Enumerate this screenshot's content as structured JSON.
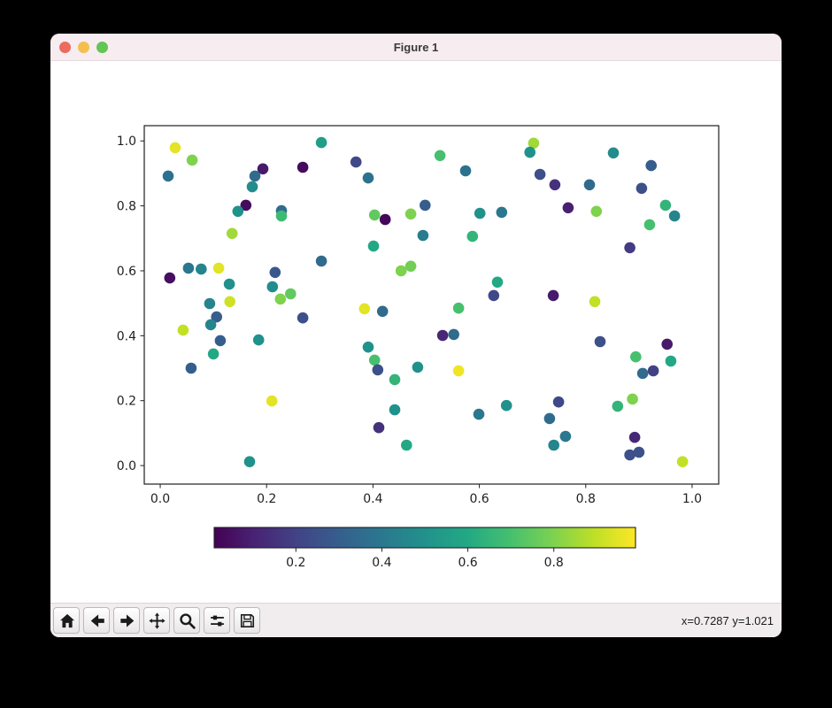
{
  "window": {
    "title": "Figure 1"
  },
  "titlebar": {
    "traffic_lights": [
      {
        "name": "close-button",
        "color": "#ec6a5e"
      },
      {
        "name": "minimize-button",
        "color": "#f5bf4f"
      },
      {
        "name": "maximize-button",
        "color": "#62c554"
      }
    ]
  },
  "toolbar": {
    "buttons": [
      {
        "name": "home",
        "icon": "home-icon"
      },
      {
        "name": "back",
        "icon": "back-arrow-icon"
      },
      {
        "name": "forward",
        "icon": "forward-arrow-icon"
      },
      {
        "name": "pan",
        "icon": "pan-arrows-icon"
      },
      {
        "name": "zoom",
        "icon": "magnifier-icon"
      },
      {
        "name": "configure-subplots",
        "icon": "sliders-icon"
      },
      {
        "name": "save",
        "icon": "floppy-disk-icon"
      }
    ],
    "status": "x=0.7287 y=1.021"
  },
  "chart_data": {
    "type": "scatter",
    "title": "",
    "xlabel": "",
    "ylabel": "",
    "xlim": [
      -0.03,
      1.05
    ],
    "ylim": [
      -0.057,
      1.047
    ],
    "xticks": {
      "values": [
        0.0,
        0.2,
        0.4,
        0.6,
        0.8,
        1.0
      ],
      "labels": [
        "0.0",
        "0.2",
        "0.4",
        "0.6",
        "0.8",
        "1.0"
      ]
    },
    "yticks": {
      "values": [
        0.0,
        0.2,
        0.4,
        0.6,
        0.8,
        1.0
      ],
      "labels": [
        "0.0",
        "0.2",
        "0.4",
        "0.6",
        "0.8",
        "1.0"
      ]
    },
    "colormap": "viridis",
    "colorbar": {
      "orientation": "horizontal",
      "vmin": 0.01,
      "vmax": 0.99,
      "tick_values": [
        0.2,
        0.4,
        0.6,
        0.8
      ],
      "tick_labels": [
        "0.2",
        "0.4",
        "0.6",
        "0.8"
      ]
    },
    "marker_radius": 6.3,
    "points": [
      [
        0.028,
        0.979,
        0.95
      ],
      [
        0.06,
        0.941,
        0.8
      ],
      [
        0.303,
        0.995,
        0.55
      ],
      [
        0.015,
        0.892,
        0.38
      ],
      [
        0.193,
        0.914,
        0.08
      ],
      [
        0.268,
        0.919,
        0.04
      ],
      [
        0.178,
        0.892,
        0.35
      ],
      [
        0.173,
        0.859,
        0.48
      ],
      [
        0.161,
        0.802,
        0.04
      ],
      [
        0.146,
        0.783,
        0.5
      ],
      [
        0.228,
        0.785,
        0.36
      ],
      [
        0.228,
        0.769,
        0.68
      ],
      [
        0.135,
        0.715,
        0.85
      ],
      [
        0.053,
        0.608,
        0.4
      ],
      [
        0.077,
        0.605,
        0.45
      ],
      [
        0.11,
        0.608,
        0.95
      ],
      [
        0.018,
        0.578,
        0.05
      ],
      [
        0.216,
        0.595,
        0.28
      ],
      [
        0.13,
        0.559,
        0.5
      ],
      [
        0.211,
        0.551,
        0.48
      ],
      [
        0.245,
        0.529,
        0.75
      ],
      [
        0.093,
        0.499,
        0.45
      ],
      [
        0.131,
        0.505,
        0.92
      ],
      [
        0.226,
        0.513,
        0.8
      ],
      [
        0.303,
        0.63,
        0.35
      ],
      [
        0.368,
        0.935,
        0.22
      ],
      [
        0.391,
        0.886,
        0.38
      ],
      [
        0.526,
        0.955,
        0.7
      ],
      [
        0.574,
        0.908,
        0.38
      ],
      [
        0.498,
        0.802,
        0.3
      ],
      [
        0.403,
        0.772,
        0.75
      ],
      [
        0.423,
        0.758,
        0.03
      ],
      [
        0.471,
        0.775,
        0.8
      ],
      [
        0.601,
        0.777,
        0.5
      ],
      [
        0.642,
        0.78,
        0.4
      ],
      [
        0.494,
        0.709,
        0.42
      ],
      [
        0.587,
        0.706,
        0.65
      ],
      [
        0.401,
        0.676,
        0.6
      ],
      [
        0.453,
        0.6,
        0.8
      ],
      [
        0.471,
        0.614,
        0.78
      ],
      [
        0.634,
        0.565,
        0.6
      ],
      [
        0.627,
        0.524,
        0.22
      ],
      [
        0.384,
        0.483,
        0.95
      ],
      [
        0.561,
        0.485,
        0.7
      ],
      [
        0.702,
        0.993,
        0.85
      ],
      [
        0.695,
        0.965,
        0.5
      ],
      [
        0.852,
        0.963,
        0.48
      ],
      [
        0.923,
        0.924,
        0.3
      ],
      [
        0.714,
        0.897,
        0.25
      ],
      [
        0.742,
        0.865,
        0.15
      ],
      [
        0.807,
        0.865,
        0.35
      ],
      [
        0.905,
        0.854,
        0.25
      ],
      [
        0.767,
        0.794,
        0.1
      ],
      [
        0.82,
        0.783,
        0.8
      ],
      [
        0.95,
        0.802,
        0.65
      ],
      [
        0.967,
        0.769,
        0.45
      ],
      [
        0.92,
        0.742,
        0.7
      ],
      [
        0.883,
        0.671,
        0.18
      ],
      [
        0.739,
        0.524,
        0.08
      ],
      [
        0.817,
        0.505,
        0.9
      ],
      [
        0.106,
        0.458,
        0.3
      ],
      [
        0.095,
        0.434,
        0.45
      ],
      [
        0.043,
        0.417,
        0.9
      ],
      [
        0.113,
        0.385,
        0.3
      ],
      [
        0.185,
        0.387,
        0.5
      ],
      [
        0.1,
        0.344,
        0.6
      ],
      [
        0.268,
        0.455,
        0.25
      ],
      [
        0.058,
        0.3,
        0.3
      ],
      [
        0.21,
        0.199,
        0.95
      ],
      [
        0.168,
        0.012,
        0.5
      ],
      [
        0.418,
        0.475,
        0.35
      ],
      [
        0.531,
        0.401,
        0.12
      ],
      [
        0.552,
        0.404,
        0.35
      ],
      [
        0.391,
        0.365,
        0.5
      ],
      [
        0.403,
        0.325,
        0.7
      ],
      [
        0.409,
        0.295,
        0.25
      ],
      [
        0.484,
        0.303,
        0.5
      ],
      [
        0.561,
        0.292,
        0.97
      ],
      [
        0.441,
        0.265,
        0.65
      ],
      [
        0.441,
        0.172,
        0.5
      ],
      [
        0.411,
        0.117,
        0.15
      ],
      [
        0.463,
        0.063,
        0.6
      ],
      [
        0.599,
        0.158,
        0.4
      ],
      [
        0.651,
        0.185,
        0.5
      ],
      [
        0.827,
        0.382,
        0.25
      ],
      [
        0.953,
        0.374,
        0.08
      ],
      [
        0.894,
        0.335,
        0.7
      ],
      [
        0.96,
        0.322,
        0.6
      ],
      [
        0.907,
        0.284,
        0.35
      ],
      [
        0.927,
        0.292,
        0.2
      ],
      [
        0.749,
        0.196,
        0.22
      ],
      [
        0.732,
        0.145,
        0.35
      ],
      [
        0.888,
        0.205,
        0.8
      ],
      [
        0.86,
        0.183,
        0.65
      ],
      [
        0.762,
        0.09,
        0.4
      ],
      [
        0.74,
        0.063,
        0.45
      ],
      [
        0.892,
        0.087,
        0.12
      ],
      [
        0.883,
        0.033,
        0.25
      ],
      [
        0.9,
        0.041,
        0.25
      ],
      [
        0.982,
        0.012,
        0.9
      ]
    ]
  }
}
